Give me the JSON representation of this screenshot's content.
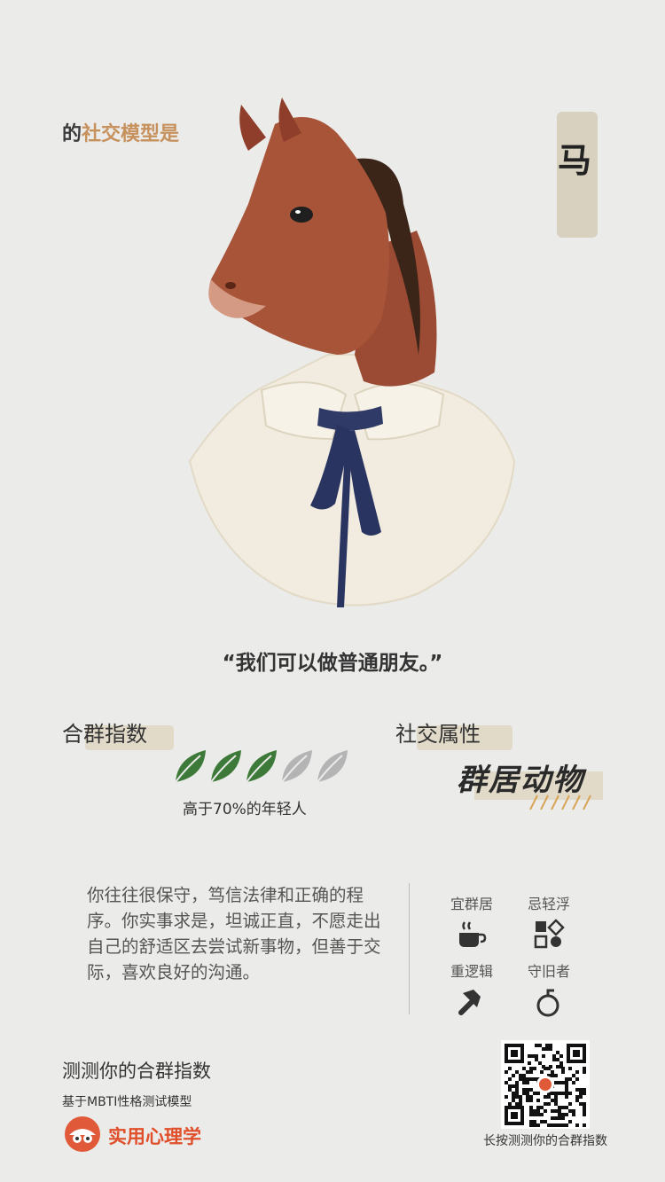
{
  "header": {
    "subtitle_prefix": "的",
    "subtitle_accent": "社交模型是",
    "animal": "马"
  },
  "quote": "“我们可以做普通朋友。”",
  "score": {
    "title": "合群指数",
    "filled_leaves": 3,
    "total_leaves": 5,
    "caption": "高于70%的年轻人"
  },
  "attribute": {
    "title": "社交属性",
    "value": "群居动物"
  },
  "description": "你往往很保守，笃信法律和正确的程序。你实事求是，坦诚正直，不愿走出自己的舒适区去尝试新事物，但善于交际，喜欢良好的沟通。",
  "traits": [
    {
      "label": "宜群居",
      "icon": "coffee-cup-icon"
    },
    {
      "label": "忌轻浮",
      "icon": "shapes-icon"
    },
    {
      "label": "重逻辑",
      "icon": "hammer-icon"
    },
    {
      "label": "守旧者",
      "icon": "bomb-icon"
    }
  ],
  "footer": {
    "title": "测测你的合群指数",
    "subtitle": "基于MBTI性格测试模型",
    "brand": "实用心理学",
    "qr_caption": "长按测测你的合群指数"
  },
  "colors": {
    "accent": "#c6915d",
    "leaf_green": "#3d7a3a",
    "leaf_grey": "#b4b4b4",
    "brand_red": "#e04e2a",
    "label_bg": "#e1dac9"
  }
}
